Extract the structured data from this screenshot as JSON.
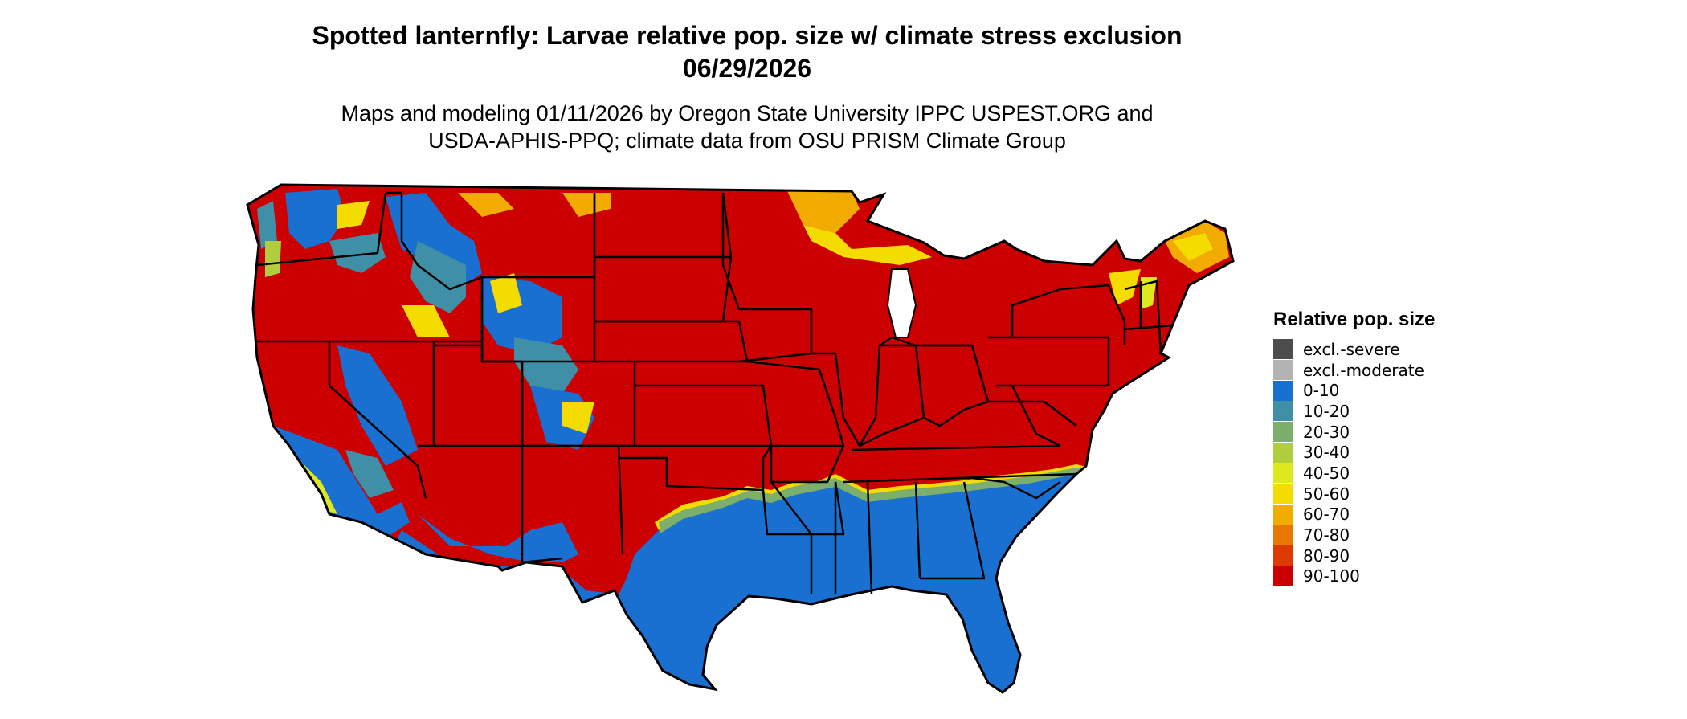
{
  "title": "Spotted lanternfly: Larvae relative pop. size w/ climate stress exclusion 06/29/2026",
  "subtitle": "Maps and modeling 01/11/2026 by Oregon State University IPPC USPEST.ORG and USDA-APHIS-PPQ; climate data from OSU PRISM Climate Group",
  "legend": {
    "title": "Relative pop. size",
    "items": [
      {
        "label": "excl.-severe",
        "color": "#4d4d4d"
      },
      {
        "label": "excl.-moderate",
        "color": "#b3b3b3"
      },
      {
        "label": "0-10",
        "color": "#1a70d0"
      },
      {
        "label": "10-20",
        "color": "#3f8fa6"
      },
      {
        "label": "20-30",
        "color": "#7caf6b"
      },
      {
        "label": "30-40",
        "color": "#b0cd3e"
      },
      {
        "label": "40-50",
        "color": "#dde91c"
      },
      {
        "label": "50-60",
        "color": "#f5dc00"
      },
      {
        "label": "60-70",
        "color": "#f2ab00"
      },
      {
        "label": "70-80",
        "color": "#e87800"
      },
      {
        "label": "80-90",
        "color": "#dc3a00"
      },
      {
        "label": "90-100",
        "color": "#cc0000"
      }
    ]
  },
  "map": {
    "region": "Contiguous United States",
    "colors": {
      "high": "#cc0000",
      "low": "#1a70d0",
      "mid": "#f5dc00",
      "border": "#000000"
    }
  }
}
